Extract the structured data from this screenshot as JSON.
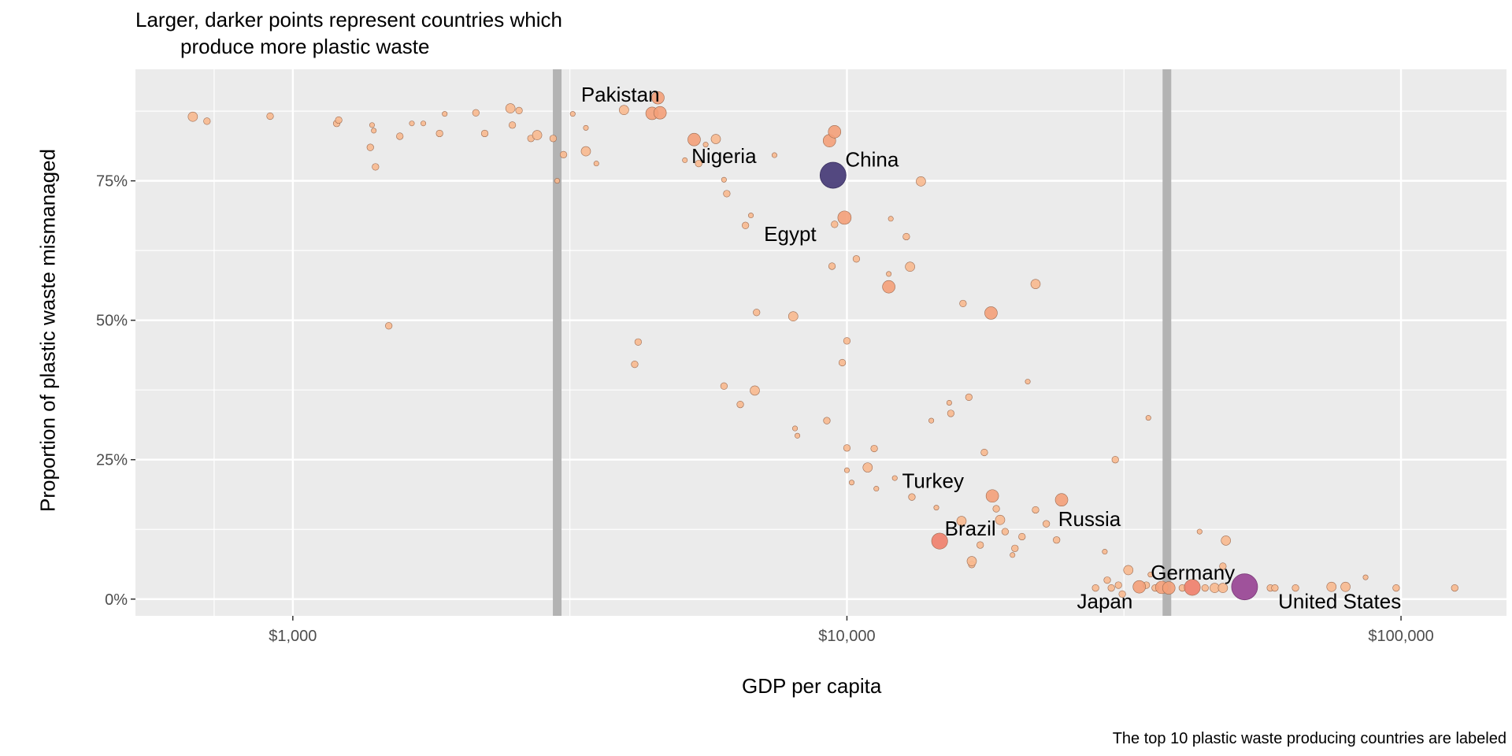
{
  "chart_data": {
    "type": "scatter",
    "title_lines": [
      "Larger, darker points represent countries which",
      "produce more plastic waste"
    ],
    "xlabel": "GDP per capita",
    "ylabel": "Proportion of plastic waste mismanaged",
    "caption": "The top 10 plastic waste producing countries are labeled",
    "x_scale": "log10",
    "xlim": [
      520,
      155000
    ],
    "ylim": [
      -0.03,
      0.95
    ],
    "x_ticks": [
      1000,
      10000,
      100000
    ],
    "x_tick_labels": [
      "$1,000",
      "$10,000",
      "$100,000"
    ],
    "y_ticks": [
      0,
      0.25,
      0.5,
      0.75
    ],
    "y_tick_labels": [
      "0%",
      "25%",
      "50%",
      "75%"
    ],
    "grid": true,
    "vlines": [
      3000,
      37800
    ],
    "colors": {
      "panel": "#ebebeb",
      "grid": "#ffffff",
      "vline": "#b3b3b3",
      "small": "#f8b98f",
      "medium": "#f4a079",
      "large": "#ef7e6a",
      "china": "#4b3f7a",
      "us": "#9b4a97"
    },
    "labels": [
      {
        "text": "Pakistan",
        "x": 3900,
        "y": 0.905
      },
      {
        "text": "Nigeria",
        "x": 6000,
        "y": 0.795
      },
      {
        "text": "China",
        "x": 11100,
        "y": 0.788
      },
      {
        "text": "Egypt",
        "x": 7900,
        "y": 0.655
      },
      {
        "text": "Turkey",
        "x": 14300,
        "y": 0.212
      },
      {
        "text": "Russia",
        "x": 27400,
        "y": 0.144
      },
      {
        "text": "Brazil",
        "x": 16700,
        "y": 0.127
      },
      {
        "text": "Germany",
        "x": 42100,
        "y": 0.048
      },
      {
        "text": "Japan",
        "x": 29200,
        "y": -0.004
      },
      {
        "text": "United States",
        "x": 77500,
        "y": -0.004
      }
    ],
    "points": [
      {
        "x": 660,
        "y": 0.865,
        "size": "s"
      },
      {
        "x": 700,
        "y": 0.857,
        "size": "xs"
      },
      {
        "x": 910,
        "y": 0.866,
        "size": "xs"
      },
      {
        "x": 1200,
        "y": 0.853,
        "size": "xs"
      },
      {
        "x": 1210,
        "y": 0.859,
        "size": "xs"
      },
      {
        "x": 1390,
        "y": 0.85,
        "size": "xxs"
      },
      {
        "x": 1400,
        "y": 0.84,
        "size": "xxs"
      },
      {
        "x": 1380,
        "y": 0.81,
        "size": "xs"
      },
      {
        "x": 1410,
        "y": 0.775,
        "size": "xs"
      },
      {
        "x": 1490,
        "y": 0.49,
        "size": "xs"
      },
      {
        "x": 1560,
        "y": 0.83,
        "size": "xs"
      },
      {
        "x": 1640,
        "y": 0.853,
        "size": "xxs"
      },
      {
        "x": 1720,
        "y": 0.853,
        "size": "xxs"
      },
      {
        "x": 1840,
        "y": 0.835,
        "size": "xs"
      },
      {
        "x": 1880,
        "y": 0.87,
        "size": "xxs"
      },
      {
        "x": 2140,
        "y": 0.872,
        "size": "xs"
      },
      {
        "x": 2220,
        "y": 0.835,
        "size": "xs"
      },
      {
        "x": 2470,
        "y": 0.88,
        "size": "s"
      },
      {
        "x": 2560,
        "y": 0.876,
        "size": "xs"
      },
      {
        "x": 2490,
        "y": 0.85,
        "size": "xs"
      },
      {
        "x": 2690,
        "y": 0.826,
        "size": "xs"
      },
      {
        "x": 2760,
        "y": 0.832,
        "size": "s"
      },
      {
        "x": 2950,
        "y": 0.826,
        "size": "xs"
      },
      {
        "x": 3000,
        "y": 0.75,
        "size": "xxs"
      },
      {
        "x": 3080,
        "y": 0.797,
        "size": "xs"
      },
      {
        "x": 3200,
        "y": 0.87,
        "size": "xxs"
      },
      {
        "x": 3380,
        "y": 0.845,
        "size": "xxs"
      },
      {
        "x": 3380,
        "y": 0.803,
        "size": "s"
      },
      {
        "x": 3530,
        "y": 0.781,
        "size": "xxs"
      },
      {
        "x": 3960,
        "y": 0.877,
        "size": "s"
      },
      {
        "x": 4140,
        "y": 0.421,
        "size": "xs"
      },
      {
        "x": 4200,
        "y": 0.461,
        "size": "xs"
      },
      {
        "x": 4450,
        "y": 0.871,
        "size": "m"
      },
      {
        "x": 4560,
        "y": 0.899,
        "size": "m"
      },
      {
        "x": 4600,
        "y": 0.872,
        "size": "m"
      },
      {
        "x": 5100,
        "y": 0.787,
        "size": "xxs"
      },
      {
        "x": 5300,
        "y": 0.824,
        "size": "m"
      },
      {
        "x": 5400,
        "y": 0.781,
        "size": "xs"
      },
      {
        "x": 5560,
        "y": 0.815,
        "size": "xxs"
      },
      {
        "x": 5800,
        "y": 0.825,
        "size": "s"
      },
      {
        "x": 6000,
        "y": 0.382,
        "size": "xs"
      },
      {
        "x": 6000,
        "y": 0.752,
        "size": "xxs"
      },
      {
        "x": 6070,
        "y": 0.727,
        "size": "xs"
      },
      {
        "x": 6420,
        "y": 0.349,
        "size": "xs"
      },
      {
        "x": 6560,
        "y": 0.67,
        "size": "xs"
      },
      {
        "x": 6710,
        "y": 0.688,
        "size": "xxs"
      },
      {
        "x": 6870,
        "y": 0.514,
        "size": "xs"
      },
      {
        "x": 6820,
        "y": 0.374,
        "size": "s"
      },
      {
        "x": 7400,
        "y": 0.796,
        "size": "xxs"
      },
      {
        "x": 8060,
        "y": 0.306,
        "size": "xxs"
      },
      {
        "x": 8140,
        "y": 0.293,
        "size": "xxs"
      },
      {
        "x": 8000,
        "y": 0.507,
        "size": "s"
      },
      {
        "x": 9300,
        "y": 0.822,
        "size": "m"
      },
      {
        "x": 9500,
        "y": 0.838,
        "size": "m"
      },
      {
        "x": 9500,
        "y": 0.672,
        "size": "xs"
      },
      {
        "x": 9200,
        "y": 0.32,
        "size": "xs"
      },
      {
        "x": 9400,
        "y": 0.597,
        "size": "xs"
      },
      {
        "x": 9440,
        "y": 0.76,
        "size": "xl",
        "color": "china"
      },
      {
        "x": 9810,
        "y": 0.424,
        "size": "xs"
      },
      {
        "x": 9900,
        "y": 0.684,
        "size": "m2"
      },
      {
        "x": 10000,
        "y": 0.463,
        "size": "xs"
      },
      {
        "x": 10000,
        "y": 0.271,
        "size": "xs"
      },
      {
        "x": 10000,
        "y": 0.231,
        "size": "xxs"
      },
      {
        "x": 10200,
        "y": 0.209,
        "size": "xxs"
      },
      {
        "x": 10400,
        "y": 0.61,
        "size": "xs"
      },
      {
        "x": 10900,
        "y": 0.236,
        "size": "s"
      },
      {
        "x": 11200,
        "y": 0.27,
        "size": "xs"
      },
      {
        "x": 11300,
        "y": 0.198,
        "size": "xxs"
      },
      {
        "x": 12000,
        "y": 0.682,
        "size": "xxs"
      },
      {
        "x": 11900,
        "y": 0.583,
        "size": "xxs"
      },
      {
        "x": 11900,
        "y": 0.56,
        "size": "m"
      },
      {
        "x": 12200,
        "y": 0.217,
        "size": "xxs"
      },
      {
        "x": 12800,
        "y": 0.65,
        "size": "xs"
      },
      {
        "x": 13000,
        "y": 0.596,
        "size": "s"
      },
      {
        "x": 13100,
        "y": 0.183,
        "size": "xs"
      },
      {
        "x": 13600,
        "y": 0.749,
        "size": "s"
      },
      {
        "x": 14200,
        "y": 0.32,
        "size": "xxs"
      },
      {
        "x": 14500,
        "y": 0.164,
        "size": "xxs"
      },
      {
        "x": 14700,
        "y": 0.104,
        "size": "l",
        "color": "large"
      },
      {
        "x": 15300,
        "y": 0.352,
        "size": "xxs"
      },
      {
        "x": 15400,
        "y": 0.333,
        "size": "xs"
      },
      {
        "x": 16200,
        "y": 0.53,
        "size": "xs"
      },
      {
        "x": 16100,
        "y": 0.14,
        "size": "s"
      },
      {
        "x": 16600,
        "y": 0.362,
        "size": "xs"
      },
      {
        "x": 16800,
        "y": 0.068,
        "size": "s"
      },
      {
        "x": 16800,
        "y": 0.062,
        "size": "xs"
      },
      {
        "x": 17400,
        "y": 0.097,
        "size": "xs"
      },
      {
        "x": 17700,
        "y": 0.263,
        "size": "xs"
      },
      {
        "x": 18200,
        "y": 0.513,
        "size": "m"
      },
      {
        "x": 18300,
        "y": 0.185,
        "size": "m"
      },
      {
        "x": 18600,
        "y": 0.162,
        "size": "xs"
      },
      {
        "x": 18900,
        "y": 0.142,
        "size": "s"
      },
      {
        "x": 19300,
        "y": 0.121,
        "size": "xs"
      },
      {
        "x": 19900,
        "y": 0.079,
        "size": "xxs"
      },
      {
        "x": 20100,
        "y": 0.091,
        "size": "xs"
      },
      {
        "x": 20700,
        "y": 0.112,
        "size": "xs"
      },
      {
        "x": 21200,
        "y": 0.39,
        "size": "xxs"
      },
      {
        "x": 21900,
        "y": 0.16,
        "size": "xs"
      },
      {
        "x": 21900,
        "y": 0.565,
        "size": "s"
      },
      {
        "x": 22900,
        "y": 0.135,
        "size": "xs"
      },
      {
        "x": 23900,
        "y": 0.106,
        "size": "xs"
      },
      {
        "x": 24400,
        "y": 0.178,
        "size": "m"
      },
      {
        "x": 28100,
        "y": 0.02,
        "size": "xs"
      },
      {
        "x": 29200,
        "y": 0.085,
        "size": "xxs"
      },
      {
        "x": 29500,
        "y": 0.034,
        "size": "xs"
      },
      {
        "x": 30000,
        "y": 0.02,
        "size": "xs"
      },
      {
        "x": 30500,
        "y": 0.25,
        "size": "xs"
      },
      {
        "x": 30900,
        "y": 0.025,
        "size": "xs"
      },
      {
        "x": 31400,
        "y": 0.009,
        "size": "xs"
      },
      {
        "x": 32200,
        "y": 0.052,
        "size": "s"
      },
      {
        "x": 33700,
        "y": 0.022,
        "size": "m"
      },
      {
        "x": 34700,
        "y": 0.025,
        "size": "xs"
      },
      {
        "x": 35000,
        "y": 0.325,
        "size": "xxs"
      },
      {
        "x": 35300,
        "y": 0.044,
        "size": "xxs"
      },
      {
        "x": 36000,
        "y": 0.02,
        "size": "xs"
      },
      {
        "x": 37000,
        "y": 0.021,
        "size": "m"
      },
      {
        "x": 38100,
        "y": 0.02,
        "size": "m"
      },
      {
        "x": 40300,
        "y": 0.02,
        "size": "xs"
      },
      {
        "x": 42000,
        "y": 0.021,
        "size": "l",
        "color": "large"
      },
      {
        "x": 43300,
        "y": 0.121,
        "size": "xxs"
      },
      {
        "x": 44300,
        "y": 0.02,
        "size": "xs"
      },
      {
        "x": 46100,
        "y": 0.02,
        "size": "s"
      },
      {
        "x": 47700,
        "y": 0.02,
        "size": "s"
      },
      {
        "x": 47700,
        "y": 0.059,
        "size": "xs"
      },
      {
        "x": 48300,
        "y": 0.105,
        "size": "s"
      },
      {
        "x": 52200,
        "y": 0.022,
        "size": "xl",
        "color": "us"
      },
      {
        "x": 58100,
        "y": 0.02,
        "size": "xs"
      },
      {
        "x": 59200,
        "y": 0.02,
        "size": "xs"
      },
      {
        "x": 64500,
        "y": 0.02,
        "size": "xs"
      },
      {
        "x": 74900,
        "y": 0.022,
        "size": "s"
      },
      {
        "x": 79400,
        "y": 0.022,
        "size": "s"
      },
      {
        "x": 86300,
        "y": 0.039,
        "size": "xxs"
      },
      {
        "x": 98000,
        "y": 0.02,
        "size": "xs"
      },
      {
        "x": 125000,
        "y": 0.02,
        "size": "xs"
      }
    ]
  }
}
